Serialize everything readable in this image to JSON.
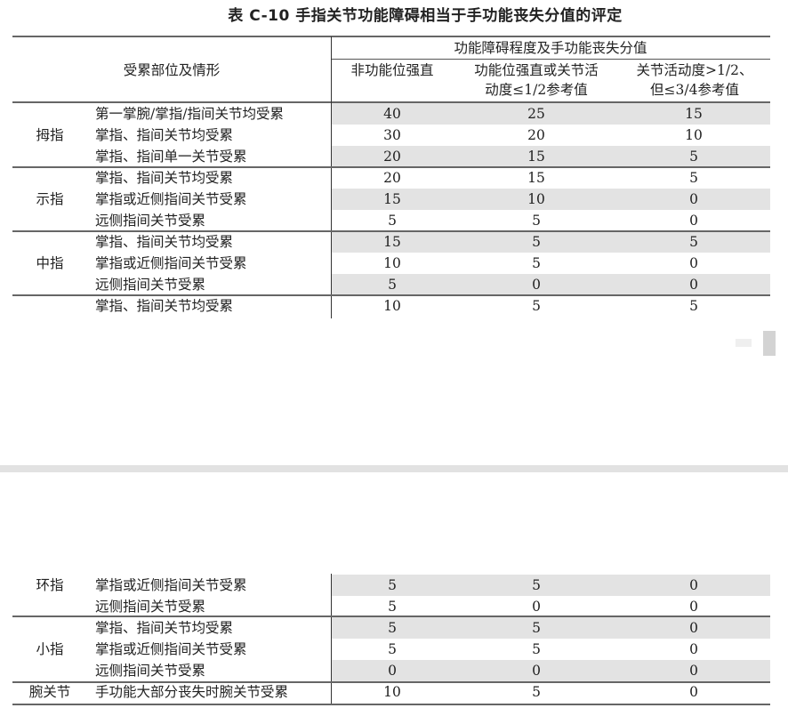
{
  "title": "表 C-10  手指关节功能障碍相当于手功能丧失分值的评定",
  "header": {
    "left": "受累部位及情形",
    "group": "功能障碍程度及手功能丧失分值",
    "col1": "非功能位强直",
    "col2_line1": "功能位强直或关节活",
    "col2_line2": "动度≤1/2参考值",
    "col3_line1": "关节活动度>1/2、",
    "col3_line2": "但≤3/4参考值"
  },
  "upper_rows": [
    {
      "group": "",
      "item": "第一掌腕/掌指/指间关节均受累",
      "v": [
        "40",
        "25",
        "15"
      ],
      "shaded": true
    },
    {
      "group": "拇指",
      "item": "掌指、指间关节均受累",
      "v": [
        "30",
        "20",
        "10"
      ],
      "shaded": false
    },
    {
      "group": "",
      "item": "掌指、指间单一关节受累",
      "v": [
        "20",
        "15",
        "5"
      ],
      "shaded": true
    },
    {
      "group": "",
      "item": "掌指、指间关节均受累",
      "v": [
        "20",
        "15",
        "5"
      ],
      "shaded": false
    },
    {
      "group": "示指",
      "item": "掌指或近侧指间关节受累",
      "v": [
        "15",
        "10",
        "0"
      ],
      "shaded": true
    },
    {
      "group": "",
      "item": "远侧指间关节受累",
      "v": [
        "5",
        "5",
        "0"
      ],
      "shaded": false
    },
    {
      "group": "",
      "item": "掌指、指间关节均受累",
      "v": [
        "15",
        "5",
        "5"
      ],
      "shaded": true
    },
    {
      "group": "中指",
      "item": "掌指或近侧指间关节受累",
      "v": [
        "10",
        "5",
        "0"
      ],
      "shaded": false
    },
    {
      "group": "",
      "item": "远侧指间关节受累",
      "v": [
        "5",
        "0",
        "0"
      ],
      "shaded": true
    },
    {
      "group": "",
      "item": "掌指、指间关节均受累",
      "v": [
        "10",
        "5",
        "5"
      ],
      "shaded": false
    }
  ],
  "lower_rows": [
    {
      "group": "环指",
      "item": "掌指或近侧指间关节受累",
      "v": [
        "5",
        "5",
        "0"
      ],
      "shaded": true
    },
    {
      "group": "",
      "item": "远侧指间关节受累",
      "v": [
        "5",
        "0",
        "0"
      ],
      "shaded": false
    },
    {
      "group": "",
      "item": "掌指、指间关节均受累",
      "v": [
        "5",
        "5",
        "0"
      ],
      "shaded": true
    },
    {
      "group": "小指",
      "item": "掌指或近侧指间关节受累",
      "v": [
        "5",
        "5",
        "0"
      ],
      "shaded": false
    },
    {
      "group": "",
      "item": "远侧指间关节受累",
      "v": [
        "0",
        "0",
        "0"
      ],
      "shaded": true
    },
    {
      "group": "腕关节",
      "item": "手功能大部分丧失时腕关节受累",
      "v": [
        "10",
        "5",
        "0"
      ],
      "shaded": false
    }
  ]
}
